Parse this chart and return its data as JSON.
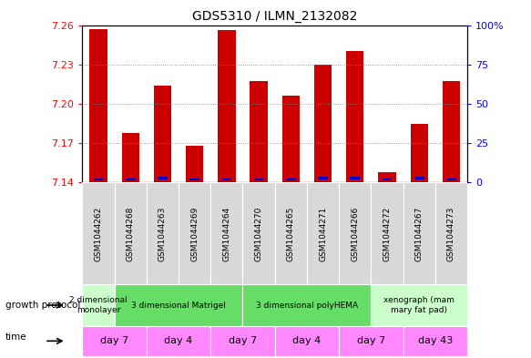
{
  "title": "GDS5310 / ILMN_2132082",
  "samples": [
    "GSM1044262",
    "GSM1044268",
    "GSM1044263",
    "GSM1044269",
    "GSM1044264",
    "GSM1044270",
    "GSM1044265",
    "GSM1044271",
    "GSM1044266",
    "GSM1044272",
    "GSM1044267",
    "GSM1044273"
  ],
  "transformed_counts": [
    7.257,
    7.178,
    7.214,
    7.168,
    7.256,
    7.217,
    7.206,
    7.23,
    7.24,
    7.148,
    7.185,
    7.217
  ],
  "percentile_ranks": [
    2,
    2,
    3,
    2,
    2,
    2,
    2,
    3,
    3,
    2,
    3,
    2
  ],
  "ymin": 7.14,
  "ymax": 7.26,
  "yticks": [
    7.14,
    7.17,
    7.2,
    7.23,
    7.26
  ],
  "y2ticks": [
    0,
    25,
    50,
    75,
    100
  ],
  "bar_color": "#cc0000",
  "percentile_color": "#0000cc",
  "bar_width": 0.55,
  "groups_gp": [
    {
      "label": "2 dimensional\nmonolayer",
      "start": 0,
      "end": 1,
      "color": "#ccffcc"
    },
    {
      "label": "3 dimensional Matrigel",
      "start": 1,
      "end": 5,
      "color": "#66dd66"
    },
    {
      "label": "3 dimensional polyHEMA",
      "start": 5,
      "end": 9,
      "color": "#66dd66"
    },
    {
      "label": "xenograph (mam\nmary fat pad)",
      "start": 9,
      "end": 12,
      "color": "#ccffcc"
    }
  ],
  "groups_time": [
    {
      "label": "day 7",
      "start": 0,
      "end": 2,
      "color": "#ff88ff"
    },
    {
      "label": "day 4",
      "start": 2,
      "end": 4,
      "color": "#ff88ff"
    },
    {
      "label": "day 7",
      "start": 4,
      "end": 6,
      "color": "#ff88ff"
    },
    {
      "label": "day 4",
      "start": 6,
      "end": 8,
      "color": "#ff88ff"
    },
    {
      "label": "day 7",
      "start": 8,
      "end": 10,
      "color": "#ff88ff"
    },
    {
      "label": "day 43",
      "start": 10,
      "end": 12,
      "color": "#ff88ff"
    }
  ]
}
